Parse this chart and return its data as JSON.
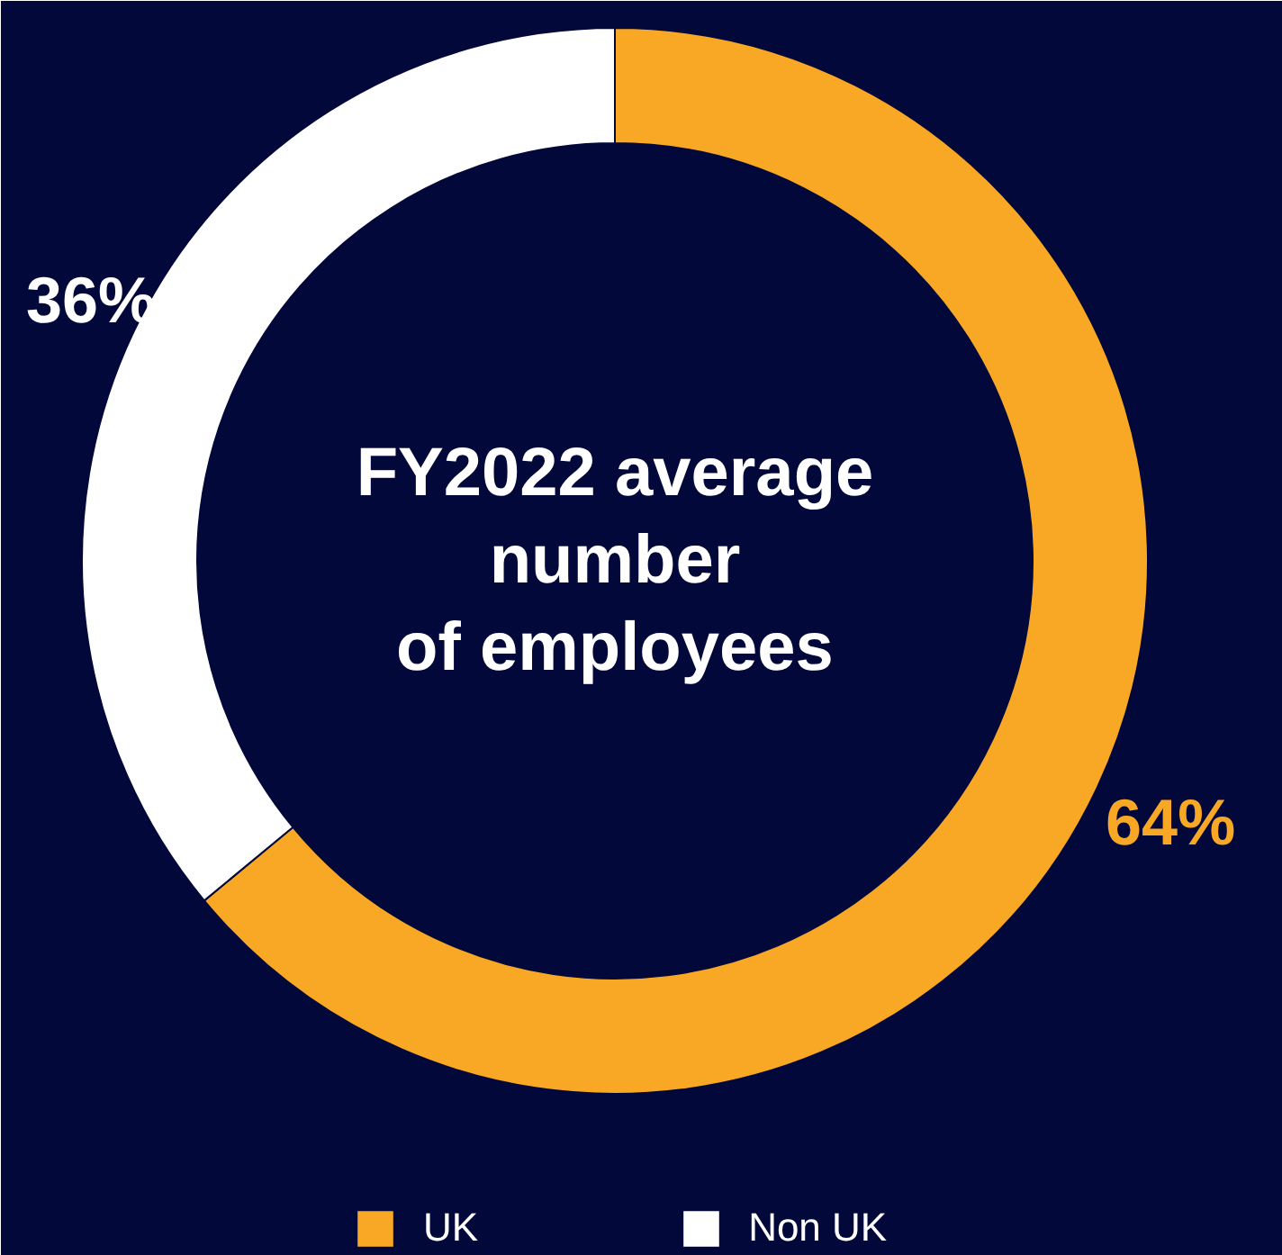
{
  "chart_data": {
    "type": "donut",
    "title": "FY2022 average\nnumber\nof employees",
    "categories": [
      "UK",
      "Non UK"
    ],
    "values": [
      64,
      36
    ],
    "colors": [
      "#f9a825",
      "#ffffff"
    ],
    "value_labels": [
      "64%",
      "36%"
    ],
    "legend": "bottom"
  }
}
